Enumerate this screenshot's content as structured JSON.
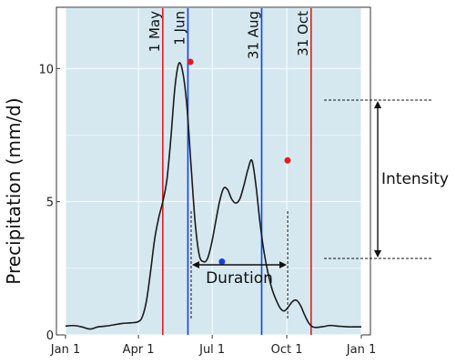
{
  "chart_data": {
    "type": "line",
    "ylabel": "Precipitation (mm/d)",
    "xlabel": "",
    "xlim": [
      0,
      365
    ],
    "ylim": [
      0,
      12.3
    ],
    "x_ticks": [
      {
        "label": "Jan 1",
        "x": 0
      },
      {
        "label": "Apr 1",
        "x": 90
      },
      {
        "label": "Jul 1",
        "x": 181
      },
      {
        "label": "Oct 1",
        "x": 273
      },
      {
        "label": "Jan 1",
        "x": 365
      }
    ],
    "y_ticks": [
      0,
      5,
      10
    ],
    "grid": true,
    "panel_color": "#d5e8f0",
    "line_color": "#1a1a1a",
    "series": [
      {
        "x": [
          0,
          10,
          20,
          30,
          40,
          50,
          60,
          70,
          80,
          90,
          95,
          100,
          105,
          110,
          115,
          120,
          125,
          130,
          135,
          140,
          145,
          150,
          155,
          160,
          165,
          170,
          175,
          180,
          185,
          190,
          195,
          200,
          205,
          210,
          215,
          220,
          225,
          230,
          235,
          240,
          245,
          250,
          255,
          260,
          265,
          270,
          275,
          280,
          285,
          290,
          295,
          300,
          305,
          310,
          315,
          320,
          325,
          330,
          335,
          340,
          345,
          350,
          355,
          360,
          365
        ],
        "y": [
          0.33,
          0.35,
          0.3,
          0.22,
          0.3,
          0.33,
          0.38,
          0.43,
          0.45,
          0.5,
          0.7,
          1.3,
          2.4,
          3.6,
          4.4,
          5.0,
          5.8,
          7.4,
          9.3,
          10.2,
          9.8,
          8.5,
          6.3,
          4.2,
          3.0,
          2.75,
          2.85,
          3.4,
          4.2,
          5.0,
          5.5,
          5.45,
          5.1,
          4.95,
          5.1,
          5.6,
          6.2,
          6.55,
          5.6,
          4.2,
          3.1,
          2.3,
          1.7,
          1.3,
          1.0,
          0.9,
          1.05,
          1.25,
          1.3,
          1.1,
          0.75,
          0.45,
          0.3,
          0.28,
          0.3,
          0.32,
          0.35,
          0.35,
          0.33,
          0.32,
          0.31,
          0.3,
          0.3,
          0.3,
          0.3
        ]
      }
    ],
    "points": [
      {
        "x": 154,
        "y": 10.25,
        "color": "#e41a1c"
      },
      {
        "x": 193,
        "y": 2.75,
        "color": "#1a3ee8"
      },
      {
        "x": 274,
        "y": 6.55,
        "color": "#e41a1c"
      }
    ],
    "vlines": [
      {
        "label": "1 May",
        "x": 120,
        "color": "#e41a1c"
      },
      {
        "label": "1 Jun",
        "x": 151,
        "color": "#1a3ee8"
      },
      {
        "label": "31 Aug",
        "x": 242,
        "color": "#1a3ee8"
      },
      {
        "label": "31 Oct",
        "x": 303,
        "color": "#e41a1c"
      }
    ],
    "annotations": {
      "intensity_label": "Intensity",
      "duration_label": "Duration"
    }
  }
}
